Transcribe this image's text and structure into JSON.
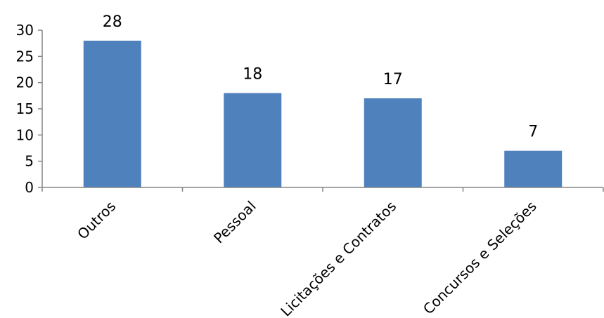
{
  "chart_data": {
    "type": "bar",
    "categories": [
      "Outros",
      "Pessoal",
      "Licitações e Contratos",
      "Concursos e Seleções"
    ],
    "values": [
      28,
      18,
      17,
      7
    ],
    "ylim": [
      0,
      30
    ],
    "yticks": [
      0,
      5,
      10,
      15,
      20,
      25,
      30
    ],
    "data_labels": [
      "28",
      "18",
      "17",
      "7"
    ],
    "grid": false,
    "legend": "none",
    "colors": {
      "bar": "#4F81BD",
      "axis": "#868686",
      "text": "#000000"
    }
  }
}
